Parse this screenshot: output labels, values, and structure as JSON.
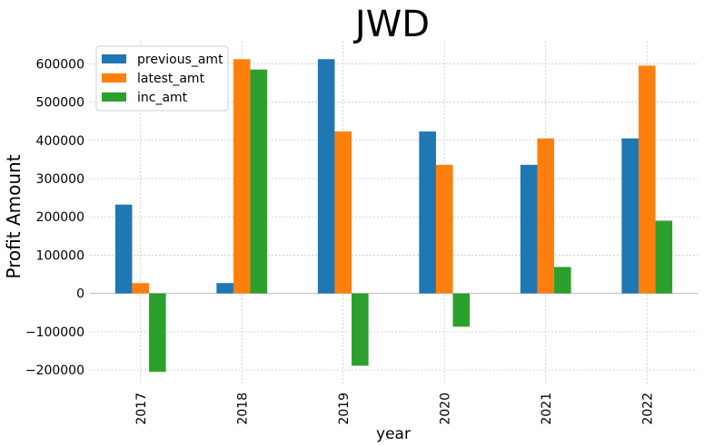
{
  "chart_data": {
    "type": "bar",
    "title": "JWD",
    "xlabel": "year",
    "ylabel": "Profit Amount",
    "categories": [
      "2017",
      "2018",
      "2019",
      "2020",
      "2021",
      "2022"
    ],
    "series": [
      {
        "name": "previous_amt",
        "color": "#1f77b4",
        "values": [
          232000,
          27000,
          612000,
          423000,
          336000,
          405000
        ]
      },
      {
        "name": "latest_amt",
        "color": "#ff7f0e",
        "values": [
          27000,
          612000,
          423000,
          336000,
          405000,
          595000
        ]
      },
      {
        "name": "inc_amt",
        "color": "#2ca02c",
        "values": [
          -205000,
          585000,
          -189000,
          -87000,
          69000,
          190000
        ]
      }
    ],
    "ylim": [
      -240000,
      660000
    ],
    "yticks": [
      -200000,
      -100000,
      0,
      100000,
      200000,
      300000,
      400000,
      500000,
      600000
    ],
    "ytick_labels": [
      "−200000",
      "−100000",
      "0",
      "100000",
      "200000",
      "300000",
      "400000",
      "500000",
      "600000"
    ],
    "grid": true,
    "legend_position": "top-left"
  }
}
